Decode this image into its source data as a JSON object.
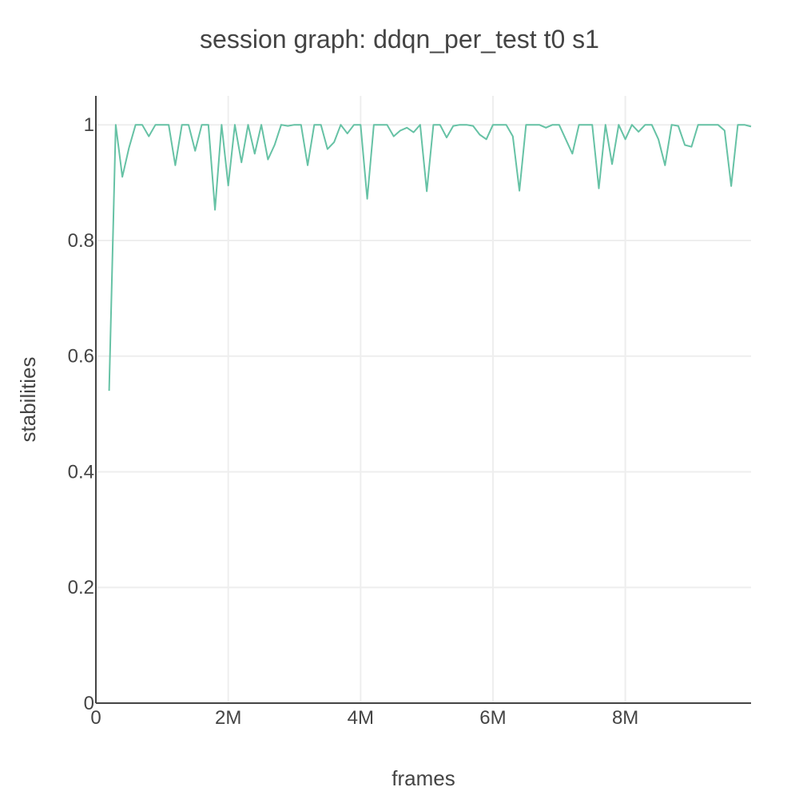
{
  "chart_data": {
    "type": "line",
    "title": "session graph: ddqn_per_test t0 s1",
    "xlabel": "frames",
    "ylabel": "stabilities",
    "xlim": [
      0,
      9900000
    ],
    "ylim": [
      0,
      1.05
    ],
    "grid": true,
    "x_ticks": [
      {
        "value": 0,
        "label": "0"
      },
      {
        "value": 2000000,
        "label": "2M"
      },
      {
        "value": 4000000,
        "label": "4M"
      },
      {
        "value": 6000000,
        "label": "6M"
      },
      {
        "value": 8000000,
        "label": "8M"
      }
    ],
    "y_ticks": [
      {
        "value": 0,
        "label": "0"
      },
      {
        "value": 0.2,
        "label": "0.2"
      },
      {
        "value": 0.4,
        "label": "0.4"
      },
      {
        "value": 0.6,
        "label": "0.6"
      },
      {
        "value": 0.8,
        "label": "0.8"
      },
      {
        "value": 1,
        "label": "1"
      }
    ],
    "series": [
      {
        "color": "#66c2a5",
        "points": [
          [
            200000,
            0.54
          ],
          [
            300000,
            1.0
          ],
          [
            400000,
            0.91
          ],
          [
            500000,
            0.96
          ],
          [
            600000,
            1.0
          ],
          [
            700000,
            1.0
          ],
          [
            800000,
            0.98
          ],
          [
            900000,
            1.0
          ],
          [
            1000000,
            1.0
          ],
          [
            1100000,
            1.0
          ],
          [
            1200000,
            0.93
          ],
          [
            1300000,
            1.0
          ],
          [
            1400000,
            1.0
          ],
          [
            1500000,
            0.955
          ],
          [
            1600000,
            1.0
          ],
          [
            1700000,
            1.0
          ],
          [
            1800000,
            0.853
          ],
          [
            1900000,
            1.0
          ],
          [
            2000000,
            0.895
          ],
          [
            2100000,
            1.0
          ],
          [
            2200000,
            0.935
          ],
          [
            2300000,
            1.0
          ],
          [
            2400000,
            0.95
          ],
          [
            2500000,
            1.0
          ],
          [
            2600000,
            0.94
          ],
          [
            2700000,
            0.965
          ],
          [
            2800000,
            1.0
          ],
          [
            2900000,
            0.998
          ],
          [
            3000000,
            1.0
          ],
          [
            3100000,
            1.0
          ],
          [
            3200000,
            0.93
          ],
          [
            3300000,
            1.0
          ],
          [
            3400000,
            1.0
          ],
          [
            3500000,
            0.958
          ],
          [
            3600000,
            0.97
          ],
          [
            3700000,
            1.0
          ],
          [
            3800000,
            0.985
          ],
          [
            3900000,
            1.0
          ],
          [
            4000000,
            1.0
          ],
          [
            4100000,
            0.872
          ],
          [
            4200000,
            1.0
          ],
          [
            4300000,
            1.0
          ],
          [
            4400000,
            1.0
          ],
          [
            4500000,
            0.98
          ],
          [
            4600000,
            0.99
          ],
          [
            4700000,
            0.995
          ],
          [
            4800000,
            0.987
          ],
          [
            4900000,
            1.0
          ],
          [
            5000000,
            0.885
          ],
          [
            5100000,
            1.0
          ],
          [
            5200000,
            1.0
          ],
          [
            5300000,
            0.978
          ],
          [
            5400000,
            0.998
          ],
          [
            5500000,
            1.0
          ],
          [
            5600000,
            1.0
          ],
          [
            5700000,
            0.998
          ],
          [
            5800000,
            0.983
          ],
          [
            5900000,
            0.975
          ],
          [
            6000000,
            1.0
          ],
          [
            6100000,
            1.0
          ],
          [
            6200000,
            1.0
          ],
          [
            6300000,
            0.98
          ],
          [
            6400000,
            0.886
          ],
          [
            6500000,
            1.0
          ],
          [
            6600000,
            1.0
          ],
          [
            6700000,
            1.0
          ],
          [
            6800000,
            0.995
          ],
          [
            6900000,
            1.0
          ],
          [
            7000000,
            1.0
          ],
          [
            7100000,
            0.975
          ],
          [
            7200000,
            0.95
          ],
          [
            7300000,
            1.0
          ],
          [
            7400000,
            1.0
          ],
          [
            7500000,
            1.0
          ],
          [
            7600000,
            0.89
          ],
          [
            7700000,
            1.0
          ],
          [
            7800000,
            0.932
          ],
          [
            7900000,
            1.0
          ],
          [
            8000000,
            0.975
          ],
          [
            8100000,
            1.0
          ],
          [
            8200000,
            0.988
          ],
          [
            8300000,
            1.0
          ],
          [
            8400000,
            1.0
          ],
          [
            8500000,
            0.975
          ],
          [
            8600000,
            0.93
          ],
          [
            8700000,
            1.0
          ],
          [
            8800000,
            0.998
          ],
          [
            8900000,
            0.965
          ],
          [
            9000000,
            0.962
          ],
          [
            9100000,
            1.0
          ],
          [
            9200000,
            1.0
          ],
          [
            9300000,
            1.0
          ],
          [
            9400000,
            1.0
          ],
          [
            9500000,
            0.99
          ],
          [
            9600000,
            0.894
          ],
          [
            9700000,
            1.0
          ],
          [
            9800000,
            1.0
          ],
          [
            9900000,
            0.997
          ]
        ]
      }
    ]
  }
}
